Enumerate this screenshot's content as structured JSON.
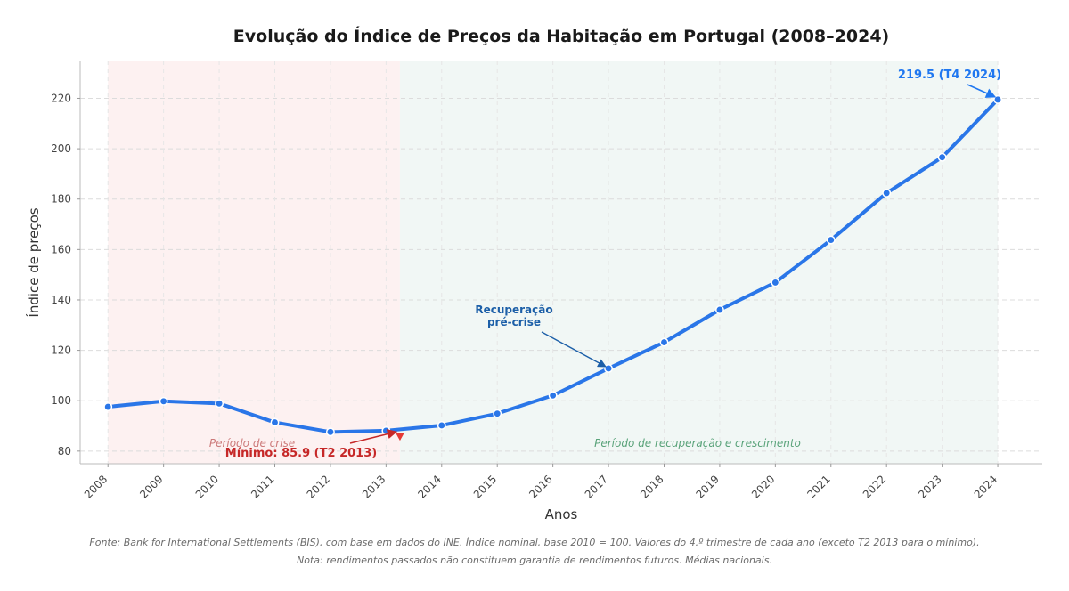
{
  "chart_data": {
    "type": "line",
    "title": "Evolução do Índice de Preços da Habitação em Portugal (2008–2024)",
    "xlabel": "Anos",
    "ylabel": "Índice de preços",
    "x": [
      "2008",
      "2009",
      "2010",
      "2011",
      "2012",
      "2013",
      "2014",
      "2015",
      "2016",
      "2017",
      "2018",
      "2019",
      "2020",
      "2021",
      "2022",
      "2023",
      "2024"
    ],
    "series": [
      {
        "values": [
          97.6,
          99.8,
          98.9,
          91.4,
          87.6,
          88.1,
          90.2,
          94.9,
          102.1,
          112.8,
          123.2,
          136.1,
          146.9,
          163.8,
          182.4,
          196.6,
          219.5
        ],
        "color": "#2a76e8"
      }
    ],
    "minimum_point": {
      "x": 2013.25,
      "y": 85.9
    },
    "ylim": [
      75,
      235
    ],
    "xlim": [
      2007.5,
      2024.8
    ],
    "yticks": [
      80,
      100,
      120,
      140,
      160,
      180,
      200,
      220
    ],
    "grid": true,
    "regions": [
      {
        "label": "Período de crise",
        "from": 2008,
        "to": 2013.25,
        "color": "#fdf1f1",
        "label_color": "#cc7a7a"
      },
      {
        "label": "Período de recuperação e crescimento",
        "from": 2013.25,
        "to": 2024,
        "color": "#f1f7f5",
        "label_color": "#5aa37a"
      }
    ],
    "annotations": {
      "minimum": {
        "text": "Mínimo: 85.9 (T2 2013)",
        "color": "#c62828"
      },
      "recovery": {
        "line1": "Recuperação",
        "line2": "pré-crise",
        "color": "#1c5fa8"
      },
      "latest": {
        "text": "219.5 (T4 2024)",
        "color": "#1f77f0"
      }
    }
  },
  "footer": {
    "source": "Fonte: Bank for International Settlements (BIS), com base em dados do INE. Índice nominal, base 2010 = 100. Valores do 4.º trimestre de cada ano (exceto T2 2013 para o mínimo).",
    "note": "Nota: rendimentos passados não constituem garantia de rendimentos futuros. Médias nacionais."
  }
}
